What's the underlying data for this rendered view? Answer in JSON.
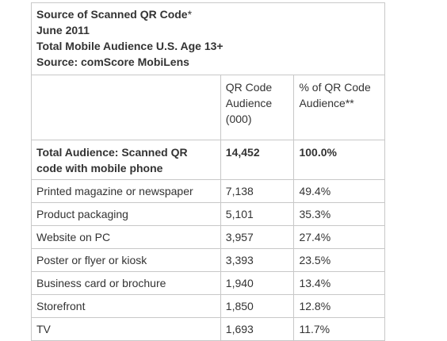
{
  "caption": {
    "line1": "Source of Scanned QR Code",
    "line1_mark": "*",
    "line2": "June 2011",
    "line3": "Total Mobile Audience U.S. Age 13+",
    "line4": "Source: comScore MobiLens"
  },
  "header": {
    "col1": "",
    "col2": "QR Code Audience (000)",
    "col3": "% of QR Code Audience",
    "col3_mark": "**"
  },
  "total": {
    "label": "Total Audience: Scanned QR code with mobile phone",
    "audience": "14,452",
    "percent": "100.0%"
  },
  "rows": [
    {
      "label": "Printed magazine or newspaper",
      "audience": "7,138",
      "percent": "49.4%"
    },
    {
      "label": "Product packaging",
      "audience": "5,101",
      "percent": "35.3%"
    },
    {
      "label": "Website on PC",
      "audience": "3,957",
      "percent": "27.4%"
    },
    {
      "label": "Poster or flyer or kiosk",
      "audience": "3,393",
      "percent": "23.5%"
    },
    {
      "label": "Business card or brochure",
      "audience": "1,940",
      "percent": "13.4%"
    },
    {
      "label": "Storefront",
      "audience": "1,850",
      "percent": "12.8%"
    },
    {
      "label": "TV",
      "audience": "1,693",
      "percent": "11.7%"
    }
  ]
}
